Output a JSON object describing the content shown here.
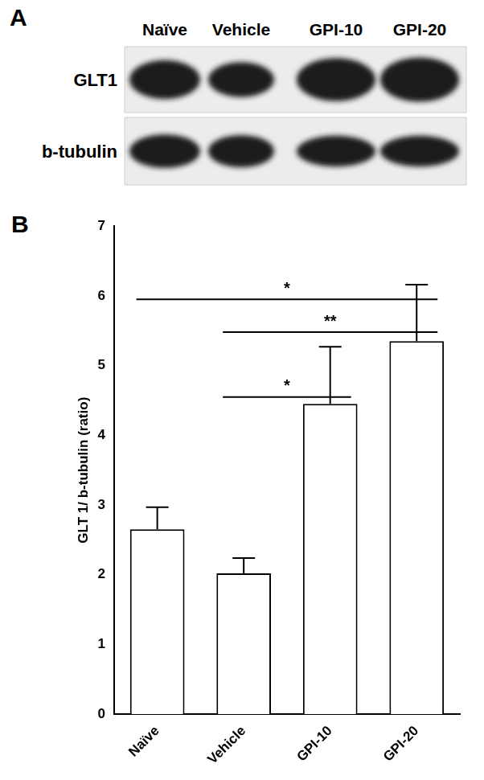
{
  "panel_a": {
    "label": "A",
    "columns": [
      "Naïve",
      "Vehicle",
      "GPI-10",
      "GPI-20"
    ],
    "rows": [
      "GLT1",
      "b-tubulin"
    ]
  },
  "panel_b": {
    "label": "B"
  },
  "chart_data": {
    "type": "bar",
    "categories": [
      "Naïve",
      "Vehicle",
      "GPI-10",
      "GPI-20"
    ],
    "values": [
      2.65,
      2.02,
      4.45,
      5.35
    ],
    "errors": [
      0.32,
      0.22,
      0.82,
      0.81
    ],
    "color": "#ffffff",
    "y_label": "GLT 1/ b-tubulin (ratio)",
    "ylim": [
      0,
      7
    ],
    "yticks": [
      0,
      1,
      2,
      3,
      4,
      5,
      6,
      7
    ],
    "grid": false,
    "significance": [
      {
        "from": "Naïve",
        "to": "GPI-20",
        "y": 5.95,
        "label": "*"
      },
      {
        "from": "Vehicle",
        "to": "GPI-20",
        "y": 5.48,
        "label": "**"
      },
      {
        "from": "Vehicle",
        "to": "GPI-10",
        "y": 4.55,
        "label": "*"
      }
    ]
  }
}
